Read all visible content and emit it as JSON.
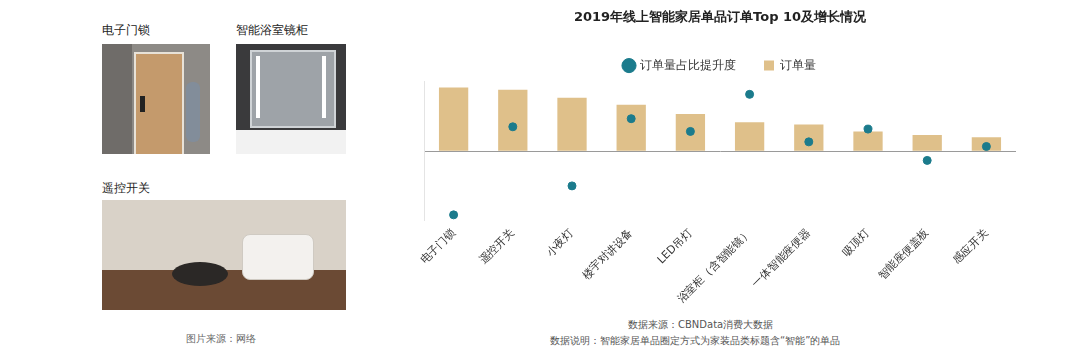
{
  "chart_data": {
    "type": "bar",
    "title": "2019年线上智能家居单品订单Top 10及增长情况",
    "categories": [
      "电子门锁",
      "遥控开关",
      "小夜灯",
      "楼宇对讲设备",
      "LED吊灯",
      "浴室柜（含智能镜）",
      "一体智能座便器",
      "吸顶灯",
      "智能座便盖板",
      "感应开关"
    ],
    "series": [
      {
        "name": "订单量",
        "type": "bar",
        "marker": "square",
        "color": "#dfc08a",
        "values": [
          55,
          53,
          46,
          40,
          32,
          25,
          23,
          17,
          14,
          12
        ]
      },
      {
        "name": "订单量占比提升度",
        "type": "scatter",
        "marker": "circle",
        "color": "#1b7b8c",
        "values": [
          -55,
          21,
          -30,
          28,
          17,
          49,
          8,
          19,
          -8,
          4
        ]
      }
    ],
    "ylim": [
      -60,
      60
    ],
    "yticks": [
      0
    ],
    "grid": true,
    "legend": "top",
    "tick_labels": "x",
    "annotations": [
      "数据来源：CBNData消费大数据",
      "数据说明：智能家居单品圈定方式为家装品类标题含“智能”的单品"
    ]
  },
  "images": {
    "panels": [
      "电子门锁",
      "智能浴室镜柜",
      "遥控开关"
    ],
    "source": "图片来源：网络"
  }
}
